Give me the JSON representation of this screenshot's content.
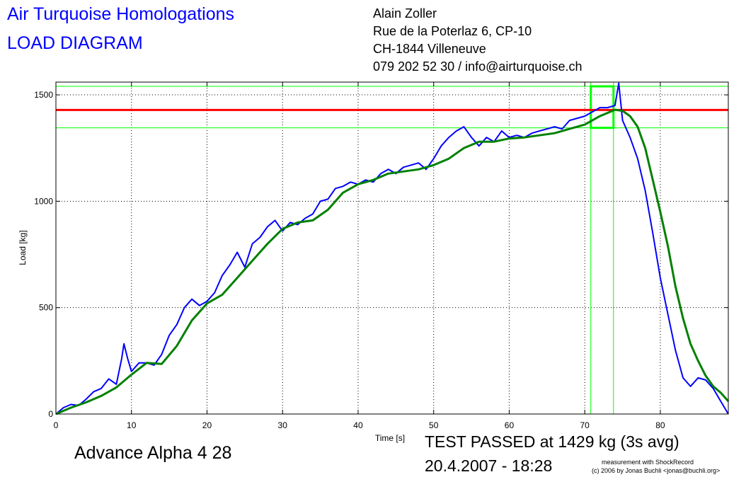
{
  "header": {
    "company": "Air Turquoise Homologations",
    "doc_type": "LOAD DIAGRAM",
    "address": [
      "Alain Zoller",
      "Rue de la Poterlaz 6, CP-10",
      "CH-1844 Villeneuve",
      "079 202 52 30 / info@airturquoise.ch"
    ]
  },
  "footer": {
    "wing": "Advance Alpha 4 28",
    "result": "TEST PASSED at 1429 kg (3s avg)",
    "date": "20.4.2007 - 18:28",
    "credit1": "measurement with ShockRecord",
    "credit2": "(c) 2006 by Jonas Buchli <jonas@buchli.org>"
  },
  "colors": {
    "raw": "#0000ff",
    "avg": "#008000",
    "limit": "#ff0000",
    "window": "#00ff00"
  },
  "chart_data": {
    "type": "line",
    "xlabel": "Time [s]",
    "ylabel": "Load [kg]",
    "xlim": [
      0,
      89
    ],
    "ylim": [
      0,
      1560
    ],
    "xticks": [
      0,
      10,
      20,
      30,
      40,
      50,
      60,
      70,
      80
    ],
    "yticks": [
      0,
      500,
      1000,
      1500
    ],
    "grid": true,
    "reference_lines": {
      "limit": 1429,
      "band_upper": 1540,
      "band_lower": 1345,
      "window_start": 70.8,
      "window_end": 73.8
    },
    "series": [
      {
        "role": "raw",
        "x": [
          0,
          1,
          2,
          3,
          4,
          5,
          6,
          7,
          8,
          8.7,
          9,
          9.5,
          10,
          11,
          12,
          13,
          14,
          15,
          16,
          17,
          18,
          19,
          20,
          21,
          22,
          23,
          24,
          25,
          26,
          27,
          28,
          29,
          30,
          31,
          32,
          33,
          34,
          35,
          36,
          37,
          38,
          39,
          40,
          41,
          42,
          43,
          44,
          45,
          46,
          47,
          48,
          49,
          50,
          51,
          52,
          53,
          54,
          55,
          56,
          57,
          58,
          59,
          60,
          61,
          62,
          63,
          64,
          65,
          66,
          67,
          68,
          69,
          70,
          71,
          72,
          73,
          74,
          74.5,
          75,
          76,
          77,
          78,
          79,
          80,
          81,
          82,
          83,
          84,
          85,
          86,
          87,
          88,
          89
        ],
        "y": [
          0,
          30,
          45,
          40,
          70,
          105,
          120,
          165,
          140,
          260,
          330,
          260,
          200,
          240,
          240,
          230,
          280,
          370,
          420,
          500,
          540,
          510,
          530,
          570,
          650,
          700,
          760,
          690,
          800,
          830,
          880,
          910,
          860,
          900,
          890,
          920,
          940,
          1000,
          1010,
          1060,
          1070,
          1090,
          1080,
          1100,
          1090,
          1130,
          1150,
          1130,
          1160,
          1170,
          1180,
          1150,
          1200,
          1260,
          1300,
          1330,
          1350,
          1300,
          1260,
          1300,
          1280,
          1330,
          1300,
          1310,
          1300,
          1320,
          1330,
          1340,
          1350,
          1340,
          1380,
          1390,
          1400,
          1420,
          1440,
          1440,
          1450,
          1555,
          1380,
          1300,
          1200,
          1050,
          850,
          640,
          470,
          300,
          170,
          130,
          170,
          160,
          120,
          60,
          0
        ]
      },
      {
        "role": "average",
        "x": [
          0,
          2,
          4,
          6,
          8,
          10,
          12,
          14,
          16,
          18,
          20,
          22,
          24,
          26,
          28,
          30,
          32,
          34,
          36,
          38,
          40,
          42,
          44,
          46,
          48,
          50,
          52,
          54,
          56,
          58,
          60,
          62,
          64,
          66,
          68,
          70,
          72,
          74,
          75,
          76,
          77,
          78,
          79,
          80,
          81,
          82,
          83,
          84,
          85,
          86,
          87,
          88,
          89
        ],
        "y": [
          0,
          30,
          55,
          85,
          125,
          185,
          240,
          235,
          320,
          440,
          520,
          560,
          640,
          720,
          800,
          870,
          900,
          910,
          960,
          1040,
          1080,
          1100,
          1130,
          1140,
          1150,
          1170,
          1200,
          1250,
          1280,
          1280,
          1295,
          1300,
          1310,
          1320,
          1340,
          1360,
          1400,
          1430,
          1425,
          1400,
          1350,
          1250,
          1100,
          950,
          790,
          600,
          450,
          330,
          250,
          180,
          130,
          100,
          60
        ]
      }
    ]
  }
}
